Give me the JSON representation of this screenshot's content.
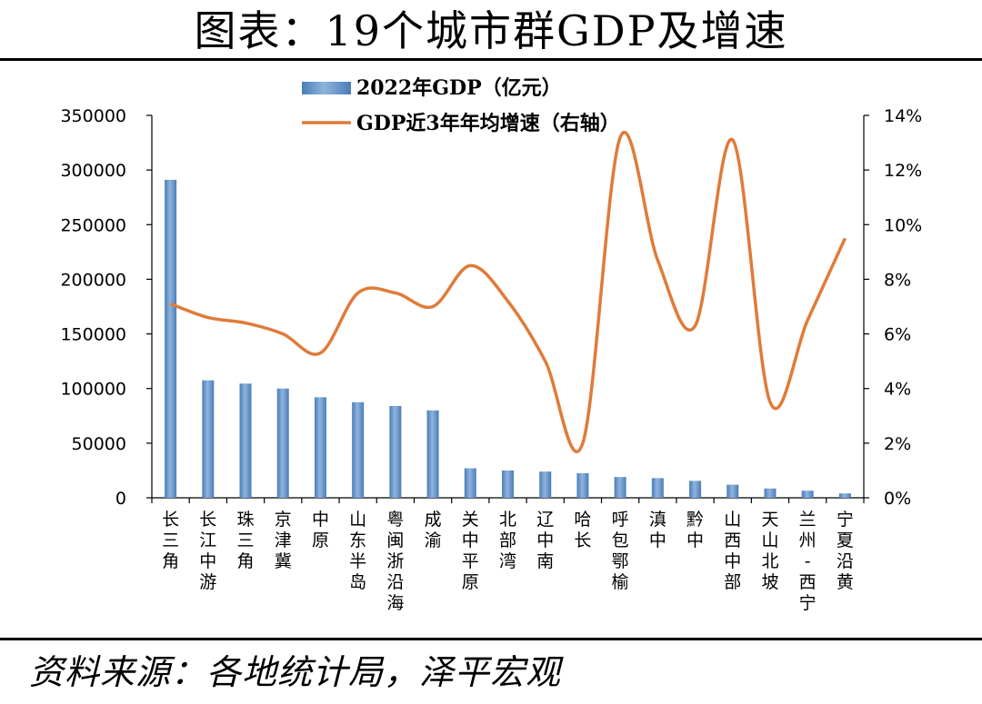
{
  "header": {
    "title": "图表：19个城市群GDP及增速"
  },
  "footer": {
    "source": "资料来源：各地统计局，泽平宏观"
  },
  "colors": {
    "bar": "#4a7db8",
    "bar_light": "#8fb4dc",
    "line": "#e07b39",
    "axis": "#000000"
  },
  "chart_data": {
    "type": "bar",
    "title": "图表：19个城市群GDP及增速",
    "categories": [
      "长三角",
      "长江中游",
      "珠三角",
      "京津冀",
      "中原",
      "山东半岛",
      "粤闽浙沿海",
      "成渝",
      "关中平原",
      "北部湾",
      "辽中南",
      "哈长",
      "呼包鄂榆",
      "滇中",
      "黔中",
      "山西中部",
      "天山北坡",
      "兰州-西宁",
      "宁夏沿黄"
    ],
    "series": [
      {
        "name": "2022年GDP（亿元）",
        "type": "bar",
        "axis": "left",
        "values": [
          291000,
          107500,
          104500,
          100000,
          92000,
          87500,
          84000,
          80000,
          27000,
          25000,
          24000,
          22500,
          19000,
          18000,
          15500,
          12000,
          8500,
          6500,
          4000
        ]
      },
      {
        "name": "GDP近3年年均增速（右轴）",
        "type": "line",
        "axis": "right",
        "values": [
          7.1,
          6.6,
          6.4,
          6.0,
          5.3,
          7.5,
          7.5,
          7.0,
          8.5,
          7.2,
          5.0,
          2.0,
          13.2,
          8.7,
          6.3,
          13.1,
          3.5,
          6.5,
          9.5
        ]
      }
    ],
    "y_left": {
      "min": 0,
      "max": 350000,
      "step": 50000,
      "tick_labels": [
        "0",
        "50000",
        "100000",
        "150000",
        "200000",
        "250000",
        "300000",
        "350000"
      ]
    },
    "y_right": {
      "min": 0,
      "max": 14,
      "step": 2,
      "tick_labels": [
        "0%",
        "2%",
        "4%",
        "6%",
        "8%",
        "10%",
        "12%",
        "14%"
      ]
    },
    "legend": {
      "position": "top-left"
    },
    "grid": false
  }
}
